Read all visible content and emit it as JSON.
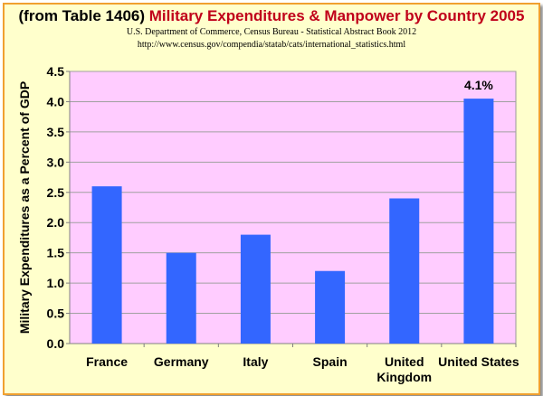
{
  "header": {
    "table_ref": "(from Table 1406) ",
    "title": "Military Expenditures & Manpower by Country 2005",
    "source": "U.S. Department of Commerce, Census Bureau - Statistical Abstract Book 2012",
    "url": "http://www.census.gov/compendia/statab/cats/international_statistics.html"
  },
  "chart_data": {
    "type": "bar",
    "categories": [
      [
        "France"
      ],
      [
        "Germany"
      ],
      [
        "Italy"
      ],
      [
        "Spain"
      ],
      [
        "United",
        "Kingdom"
      ],
      [
        "United States"
      ]
    ],
    "values": [
      2.6,
      1.5,
      1.8,
      1.2,
      2.4,
      4.05
    ],
    "data_labels": [
      "",
      "",
      "",
      "",
      "",
      "4.1%"
    ],
    "ylabel": "Military  Expenditures as a Percent of GDP",
    "xlabel": "",
    "ylim": [
      0,
      4.5
    ],
    "yticks": [
      "0.0",
      "0.5",
      "1.0",
      "1.5",
      "2.0",
      "2.5",
      "3.0",
      "3.5",
      "4.0",
      "4.5"
    ],
    "grid": true,
    "legend": "none"
  },
  "colors": {
    "plot_background": "#ffccff",
    "bar": "#3366ff",
    "frame_border": "#f0a030",
    "title_accent": "#c0001a"
  }
}
